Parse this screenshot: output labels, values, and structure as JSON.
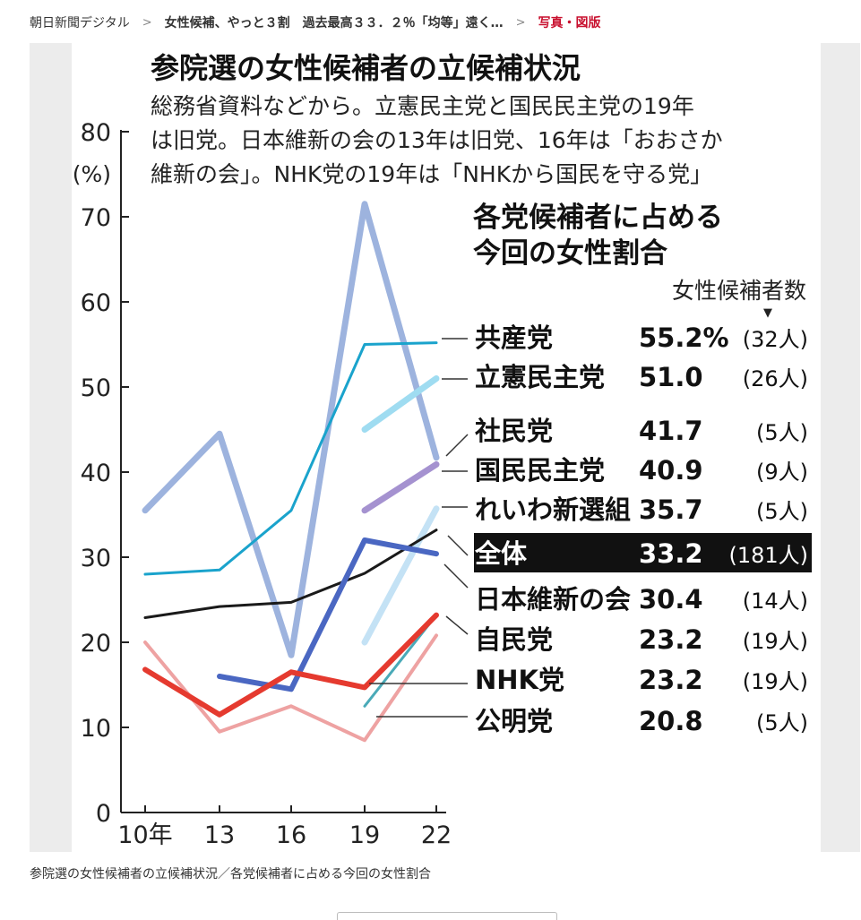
{
  "breadcrumb": {
    "site": "朝日新聞デジタル",
    "article": "女性候補、やっと３割　過去最高３３．２％「均等」遠く…",
    "current": "写真・図版",
    "separator": ">"
  },
  "caption": "参院選の女性候補者の立候補状況／各党候補者に占める今回の女性割合",
  "colors": {
    "all": "#1a1a1a",
    "kyosan": "#1aa3cc",
    "rikken": "#9fdcf1",
    "shamin": "#9db3de",
    "kokumin": "#a592d0",
    "reiwa": "#c4e2f5",
    "ishin": "#4a67c2",
    "jimin": "#e53a2f",
    "nhk": "#4aaab8",
    "komei": "#eea2a2",
    "label_box_bg": "#111111",
    "label_box_text": "#ffffff"
  },
  "chart_data": {
    "type": "line",
    "title": "参院選の女性候補者の立候補状況",
    "subtitle": [
      "総務省資料などから。立憲民主党と国民民主党の19年",
      "は旧党。日本維新の会の13年は旧党、16年は「おおさか",
      "維新の会」。NHK党の19年は「NHKから国民を守る党」"
    ],
    "ylabel_lines": [
      "80",
      "(%)"
    ],
    "yticks": [
      "0",
      "10",
      "20",
      "30",
      "40",
      "50",
      "60",
      "70"
    ],
    "ylim": [
      0,
      80
    ],
    "x": [
      10,
      13,
      16,
      19,
      22
    ],
    "xtick_labels": [
      "10年",
      "13",
      "16",
      "19",
      "22"
    ],
    "legend_title": [
      "各党候補者に占める",
      "今回の女性割合"
    ],
    "count_header": "女性候補者数",
    "count_marker": "▼",
    "series": [
      {
        "key": "shamin",
        "name": "社民党",
        "pct": "41.7",
        "count": "(5人)",
        "x": [
          10,
          13,
          16,
          19,
          22
        ],
        "values": [
          35.5,
          44.5,
          18.5,
          71.5,
          41.7
        ]
      },
      {
        "key": "kyosan",
        "name": "共産党",
        "pct": "55.2%",
        "count": "(32人)",
        "x": [
          10,
          13,
          16,
          19,
          22
        ],
        "values": [
          28,
          28.5,
          35.5,
          55,
          55.2
        ]
      },
      {
        "key": "rikken",
        "name": "立憲民主党",
        "pct": "51.0",
        "count": "(26人)",
        "x": [
          19,
          22
        ],
        "values": [
          45,
          51
        ]
      },
      {
        "key": "kokumin",
        "name": "国民民主党",
        "pct": "40.9",
        "count": "(9人)",
        "x": [
          19,
          22
        ],
        "values": [
          35.5,
          40.9
        ]
      },
      {
        "key": "reiwa",
        "name": "れいわ新選組",
        "pct": "35.7",
        "count": "(5人)",
        "x": [
          19,
          22
        ],
        "values": [
          20,
          35.7
        ]
      },
      {
        "key": "all",
        "name": "全体",
        "pct": "33.2",
        "count": "(181人)",
        "x": [
          10,
          13,
          16,
          19,
          22
        ],
        "values": [
          22.9,
          24.2,
          24.7,
          28.1,
          33.2
        ]
      },
      {
        "key": "ishin",
        "name": "日本維新の会",
        "pct": "30.4",
        "count": "(14人)",
        "x": [
          13,
          16,
          19,
          22
        ],
        "values": [
          16,
          14.5,
          32,
          30.4
        ]
      },
      {
        "key": "komei",
        "name": "公明党",
        "pct": "20.8",
        "count": "(5人)",
        "x": [
          10,
          13,
          16,
          19,
          22
        ],
        "values": [
          20,
          9.5,
          12.5,
          8.5,
          20.8
        ]
      },
      {
        "key": "nhk",
        "name": "NHK党",
        "pct": "23.2",
        "count": "(19人)",
        "x": [
          19,
          22
        ],
        "values": [
          12.5,
          23.2
        ]
      },
      {
        "key": "jimin",
        "name": "自民党",
        "pct": "23.2",
        "count": "(19人)",
        "x": [
          10,
          13,
          16,
          19,
          22
        ],
        "values": [
          16.8,
          11.5,
          16.5,
          14.7,
          23.2
        ]
      }
    ],
    "legend_order": [
      "kyosan",
      "rikken",
      "shamin",
      "kokumin",
      "reiwa",
      "all",
      "ishin",
      "jimin",
      "nhk",
      "komei"
    ]
  }
}
